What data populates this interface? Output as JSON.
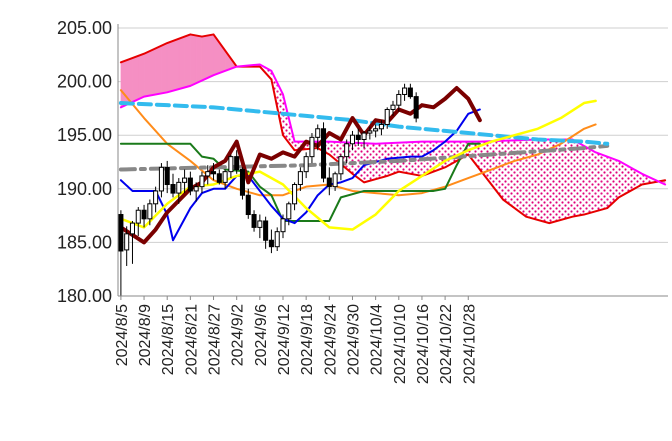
{
  "chart_data": {
    "type": "candlestick-ichimoku",
    "title": "",
    "xlabel": "",
    "ylabel": "",
    "ylim": [
      180,
      205
    ],
    "yticks": [
      "180.00",
      "185.00",
      "190.00",
      "195.00",
      "200.00",
      "205.00"
    ],
    "xtick_labels": [
      "2024/8/5",
      "2024/8/9",
      "2024/8/15",
      "2024/8/21",
      "2024/8/27",
      "2024/9/2",
      "2024/9/6",
      "2024/9/12",
      "2024/9/18",
      "2024/9/24",
      "2024/9/30",
      "2024/10/4",
      "2024/10/10",
      "2024/10/16",
      "2024/10/22",
      "2024/10/28"
    ],
    "grid": "horizontal",
    "legend": "none",
    "colors": {
      "cloud_up_fill": "#f58fc3",
      "cloud_down_fill": "#f7c2e3",
      "span_a": "#e60000",
      "span_b": "#ff00ff",
      "tenkan": "#0000ee",
      "kijun": "#1a7a1a",
      "chikou": "#7a0000",
      "ma_short": "#ffff00",
      "ma_mid": "#ff8c1a",
      "trend_dashed": "#33bbee",
      "trend_gray": "#888888",
      "candle_up": "#ffffff",
      "candle_down": "#000000"
    },
    "candles": {
      "ohlc": [
        [
          187.6,
          188.0,
          180.0,
          184.2
        ],
        [
          184.3,
          186.5,
          182.8,
          185.8
        ],
        [
          185.8,
          187.0,
          183.0,
          186.8
        ],
        [
          186.8,
          188.3,
          185.6,
          188.0
        ],
        [
          188.0,
          188.5,
          186.4,
          187.2
        ],
        [
          187.2,
          189.0,
          186.6,
          188.6
        ],
        [
          188.6,
          190.2,
          187.8,
          189.8
        ],
        [
          189.8,
          192.4,
          189.2,
          192.0
        ],
        [
          192.0,
          192.6,
          189.6,
          190.4
        ],
        [
          190.4,
          191.4,
          189.2,
          189.6
        ],
        [
          189.6,
          191.0,
          188.6,
          190.6
        ],
        [
          190.6,
          191.8,
          189.6,
          191.0
        ],
        [
          191.0,
          191.6,
          189.4,
          189.8
        ],
        [
          189.8,
          190.6,
          188.8,
          190.2
        ],
        [
          190.2,
          191.6,
          189.6,
          191.2
        ],
        [
          191.2,
          192.2,
          190.4,
          191.6
        ],
        [
          191.6,
          192.4,
          190.8,
          191.4
        ],
        [
          191.4,
          191.8,
          190.4,
          190.6
        ],
        [
          190.6,
          191.8,
          190.0,
          191.6
        ],
        [
          191.6,
          193.2,
          191.0,
          193.0
        ],
        [
          193.0,
          193.6,
          191.4,
          191.8
        ],
        [
          191.8,
          192.0,
          189.0,
          189.4
        ],
        [
          189.4,
          190.0,
          187.2,
          187.6
        ],
        [
          187.6,
          188.0,
          186.0,
          186.4
        ],
        [
          186.4,
          187.6,
          185.4,
          187.0
        ],
        [
          187.0,
          187.4,
          184.4,
          185.2
        ],
        [
          185.2,
          186.2,
          184.0,
          184.6
        ],
        [
          184.6,
          186.4,
          184.2,
          186.0
        ],
        [
          186.0,
          187.6,
          185.4,
          187.2
        ],
        [
          187.2,
          188.8,
          186.6,
          188.6
        ],
        [
          188.6,
          190.6,
          188.0,
          190.4
        ],
        [
          190.4,
          192.0,
          189.8,
          191.6
        ],
        [
          191.6,
          193.4,
          191.0,
          193.0
        ],
        [
          193.0,
          195.2,
          192.4,
          194.8
        ],
        [
          194.8,
          196.0,
          193.6,
          195.6
        ],
        [
          195.6,
          196.2,
          190.6,
          191.0
        ],
        [
          191.0,
          192.0,
          189.4,
          190.2
        ],
        [
          190.2,
          191.6,
          189.8,
          191.4
        ],
        [
          191.4,
          193.2,
          190.8,
          193.0
        ],
        [
          193.0,
          194.6,
          192.4,
          194.2
        ],
        [
          194.2,
          195.4,
          193.6,
          195.0
        ],
        [
          195.0,
          195.6,
          194.0,
          194.6
        ],
        [
          194.6,
          195.4,
          193.8,
          195.2
        ],
        [
          195.2,
          195.8,
          194.6,
          195.4
        ],
        [
          195.4,
          196.0,
          194.8,
          195.6
        ],
        [
          195.6,
          196.4,
          195.0,
          196.0
        ],
        [
          196.0,
          197.6,
          195.6,
          197.4
        ],
        [
          197.4,
          198.2,
          196.8,
          197.8
        ],
        [
          197.8,
          199.2,
          197.2,
          198.8
        ],
        [
          198.8,
          199.8,
          198.2,
          199.4
        ],
        [
          199.4,
          199.8,
          198.4,
          198.6
        ],
        [
          198.6,
          199.0,
          196.2,
          196.6
        ]
      ]
    },
    "series": [
      {
        "key": "span_a",
        "role": "cloud-upper-a",
        "values": [
          [
            0,
            201.8
          ],
          [
            4,
            202.6
          ],
          [
            8,
            203.6
          ],
          [
            12,
            204.4
          ],
          [
            14,
            204.2
          ],
          [
            16,
            204.4
          ],
          [
            20,
            201.4
          ],
          [
            24,
            201.4
          ],
          [
            26,
            200.2
          ],
          [
            28,
            195.0
          ],
          [
            30,
            193.6
          ],
          [
            34,
            193.8
          ],
          [
            36,
            193.2
          ],
          [
            40,
            191.4
          ],
          [
            42,
            190.6
          ],
          [
            46,
            191.2
          ],
          [
            48,
            191.6
          ],
          [
            52,
            191.2
          ],
          [
            56,
            192.0
          ],
          [
            60,
            193.2
          ],
          [
            62,
            191.8
          ],
          [
            66,
            189.0
          ],
          [
            70,
            187.4
          ],
          [
            74,
            186.8
          ],
          [
            78,
            187.4
          ],
          [
            80,
            187.6
          ],
          [
            84,
            188.2
          ],
          [
            86,
            189.2
          ],
          [
            90,
            190.4
          ],
          [
            94,
            190.8
          ]
        ]
      },
      {
        "key": "span_b",
        "role": "cloud-lower-b",
        "values": [
          [
            0,
            197.6
          ],
          [
            4,
            198.6
          ],
          [
            8,
            199.0
          ],
          [
            12,
            199.6
          ],
          [
            16,
            200.6
          ],
          [
            20,
            201.4
          ],
          [
            24,
            201.6
          ],
          [
            26,
            201.0
          ],
          [
            28,
            198.8
          ],
          [
            30,
            194.4
          ],
          [
            36,
            194.4
          ],
          [
            44,
            194.2
          ],
          [
            52,
            194.4
          ],
          [
            62,
            194.4
          ],
          [
            72,
            194.6
          ],
          [
            78,
            194.6
          ],
          [
            82,
            193.4
          ],
          [
            86,
            192.6
          ],
          [
            90,
            191.4
          ],
          [
            94,
            190.4
          ]
        ]
      },
      {
        "key": "tenkan",
        "values": [
          [
            0,
            190.8
          ],
          [
            2,
            189.8
          ],
          [
            6,
            189.8
          ],
          [
            8,
            187.6
          ],
          [
            9,
            185.2
          ],
          [
            12,
            188.2
          ],
          [
            14,
            189.6
          ],
          [
            16,
            190.0
          ],
          [
            18,
            190.0
          ],
          [
            20,
            191.2
          ],
          [
            22,
            191.2
          ],
          [
            24,
            189.8
          ],
          [
            26,
            188.4
          ],
          [
            28,
            187.2
          ],
          [
            30,
            186.8
          ],
          [
            32,
            187.8
          ],
          [
            34,
            189.4
          ],
          [
            36,
            190.4
          ],
          [
            38,
            190.6
          ],
          [
            40,
            191.0
          ],
          [
            42,
            192.2
          ],
          [
            46,
            192.8
          ],
          [
            50,
            193.0
          ],
          [
            52,
            193.0
          ],
          [
            54,
            193.6
          ],
          [
            56,
            194.4
          ],
          [
            58,
            195.4
          ],
          [
            60,
            197.0
          ],
          [
            62,
            197.4
          ]
        ]
      },
      {
        "key": "kijun",
        "values": [
          [
            0,
            194.2
          ],
          [
            12,
            194.2
          ],
          [
            14,
            193.0
          ],
          [
            16,
            192.8
          ],
          [
            18,
            191.8
          ],
          [
            22,
            191.6
          ],
          [
            24,
            190.2
          ],
          [
            26,
            189.4
          ],
          [
            28,
            187.0
          ],
          [
            30,
            187.0
          ],
          [
            36,
            187.0
          ],
          [
            38,
            189.2
          ],
          [
            42,
            189.8
          ],
          [
            46,
            189.8
          ],
          [
            54,
            189.8
          ],
          [
            56,
            190.0
          ],
          [
            58,
            192.2
          ],
          [
            60,
            194.2
          ],
          [
            62,
            194.2
          ]
        ]
      },
      {
        "key": "chikou",
        "values": [
          [
            0,
            186.4
          ],
          [
            4,
            185.0
          ],
          [
            6,
            186.2
          ],
          [
            8,
            187.8
          ],
          [
            12,
            190.0
          ],
          [
            14,
            190.6
          ],
          [
            16,
            192.0
          ],
          [
            18,
            192.6
          ],
          [
            20,
            194.4
          ],
          [
            22,
            190.6
          ],
          [
            24,
            193.2
          ],
          [
            26,
            192.8
          ],
          [
            28,
            193.4
          ],
          [
            30,
            193.0
          ],
          [
            32,
            194.4
          ],
          [
            34,
            194.0
          ],
          [
            36,
            195.2
          ],
          [
            38,
            194.6
          ],
          [
            40,
            196.6
          ],
          [
            42,
            195.0
          ],
          [
            44,
            196.4
          ],
          [
            46,
            196.2
          ],
          [
            48,
            197.4
          ],
          [
            50,
            197.0
          ],
          [
            52,
            197.8
          ],
          [
            54,
            197.6
          ],
          [
            56,
            198.4
          ],
          [
            58,
            199.4
          ],
          [
            60,
            198.4
          ],
          [
            62,
            196.4
          ]
        ]
      },
      {
        "key": "ma_short",
        "values": [
          [
            0,
            187.2
          ],
          [
            4,
            186.4
          ],
          [
            8,
            188.6
          ],
          [
            12,
            190.2
          ],
          [
            16,
            190.4
          ],
          [
            20,
            191.2
          ],
          [
            24,
            191.6
          ],
          [
            28,
            190.4
          ],
          [
            32,
            188.2
          ],
          [
            36,
            186.4
          ],
          [
            40,
            186.2
          ],
          [
            44,
            187.6
          ],
          [
            48,
            189.8
          ],
          [
            52,
            191.2
          ],
          [
            56,
            192.6
          ],
          [
            60,
            193.6
          ],
          [
            64,
            194.4
          ],
          [
            68,
            195.0
          ],
          [
            72,
            195.6
          ],
          [
            76,
            196.6
          ],
          [
            80,
            198.0
          ],
          [
            82,
            198.2
          ]
        ]
      },
      {
        "key": "ma_mid",
        "values": [
          [
            0,
            199.2
          ],
          [
            4,
            196.6
          ],
          [
            8,
            194.2
          ],
          [
            12,
            192.6
          ],
          [
            16,
            190.8
          ],
          [
            20,
            190.0
          ],
          [
            24,
            189.4
          ],
          [
            28,
            189.4
          ],
          [
            32,
            190.2
          ],
          [
            36,
            190.4
          ],
          [
            40,
            189.8
          ],
          [
            44,
            189.6
          ],
          [
            48,
            189.4
          ],
          [
            52,
            189.6
          ],
          [
            56,
            190.2
          ],
          [
            60,
            191.0
          ],
          [
            64,
            191.8
          ],
          [
            68,
            192.6
          ],
          [
            72,
            193.2
          ],
          [
            76,
            194.2
          ],
          [
            80,
            195.6
          ],
          [
            82,
            196.0
          ]
        ]
      },
      {
        "key": "trend_dashed",
        "values": [
          [
            0,
            198.0
          ],
          [
            8,
            197.8
          ],
          [
            16,
            197.6
          ],
          [
            24,
            197.2
          ],
          [
            32,
            196.8
          ],
          [
            40,
            196.4
          ],
          [
            48,
            195.8
          ],
          [
            56,
            195.4
          ],
          [
            64,
            195.0
          ],
          [
            72,
            194.6
          ],
          [
            80,
            194.4
          ],
          [
            84,
            194.2
          ]
        ]
      },
      {
        "key": "trend_gray",
        "values": [
          [
            0,
            191.8
          ],
          [
            16,
            192.0
          ],
          [
            32,
            192.2
          ],
          [
            48,
            192.6
          ],
          [
            64,
            193.2
          ],
          [
            80,
            193.8
          ],
          [
            84,
            194.0
          ]
        ]
      }
    ]
  }
}
